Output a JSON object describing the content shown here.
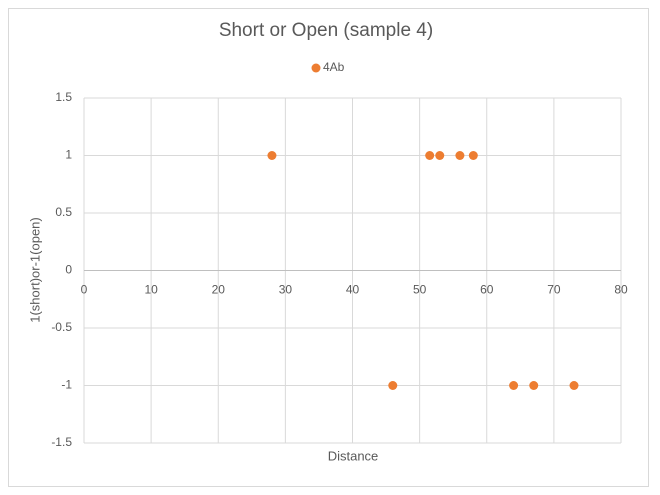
{
  "chart_data": {
    "type": "scatter",
    "title": "Short or Open (sample 4)",
    "x_label": "Distance",
    "y_label": "1(short)or-1(open)",
    "series": [
      {
        "name": "4Ab",
        "color": "#ed7d31",
        "x": [
          28,
          46,
          51.5,
          53,
          56,
          58,
          64,
          67,
          73
        ],
        "values": [
          1,
          -1,
          1,
          1,
          1,
          1,
          -1,
          -1,
          -1
        ]
      }
    ],
    "xlim": [
      0,
      80
    ],
    "xticks": [
      0,
      10,
      20,
      30,
      40,
      50,
      60,
      70,
      80
    ],
    "ylim": [
      -1.5,
      1.5
    ],
    "yticks": [
      -1.5,
      -1,
      -0.5,
      0,
      0.5,
      1,
      1.5
    ],
    "grid": true,
    "legend": "top"
  }
}
